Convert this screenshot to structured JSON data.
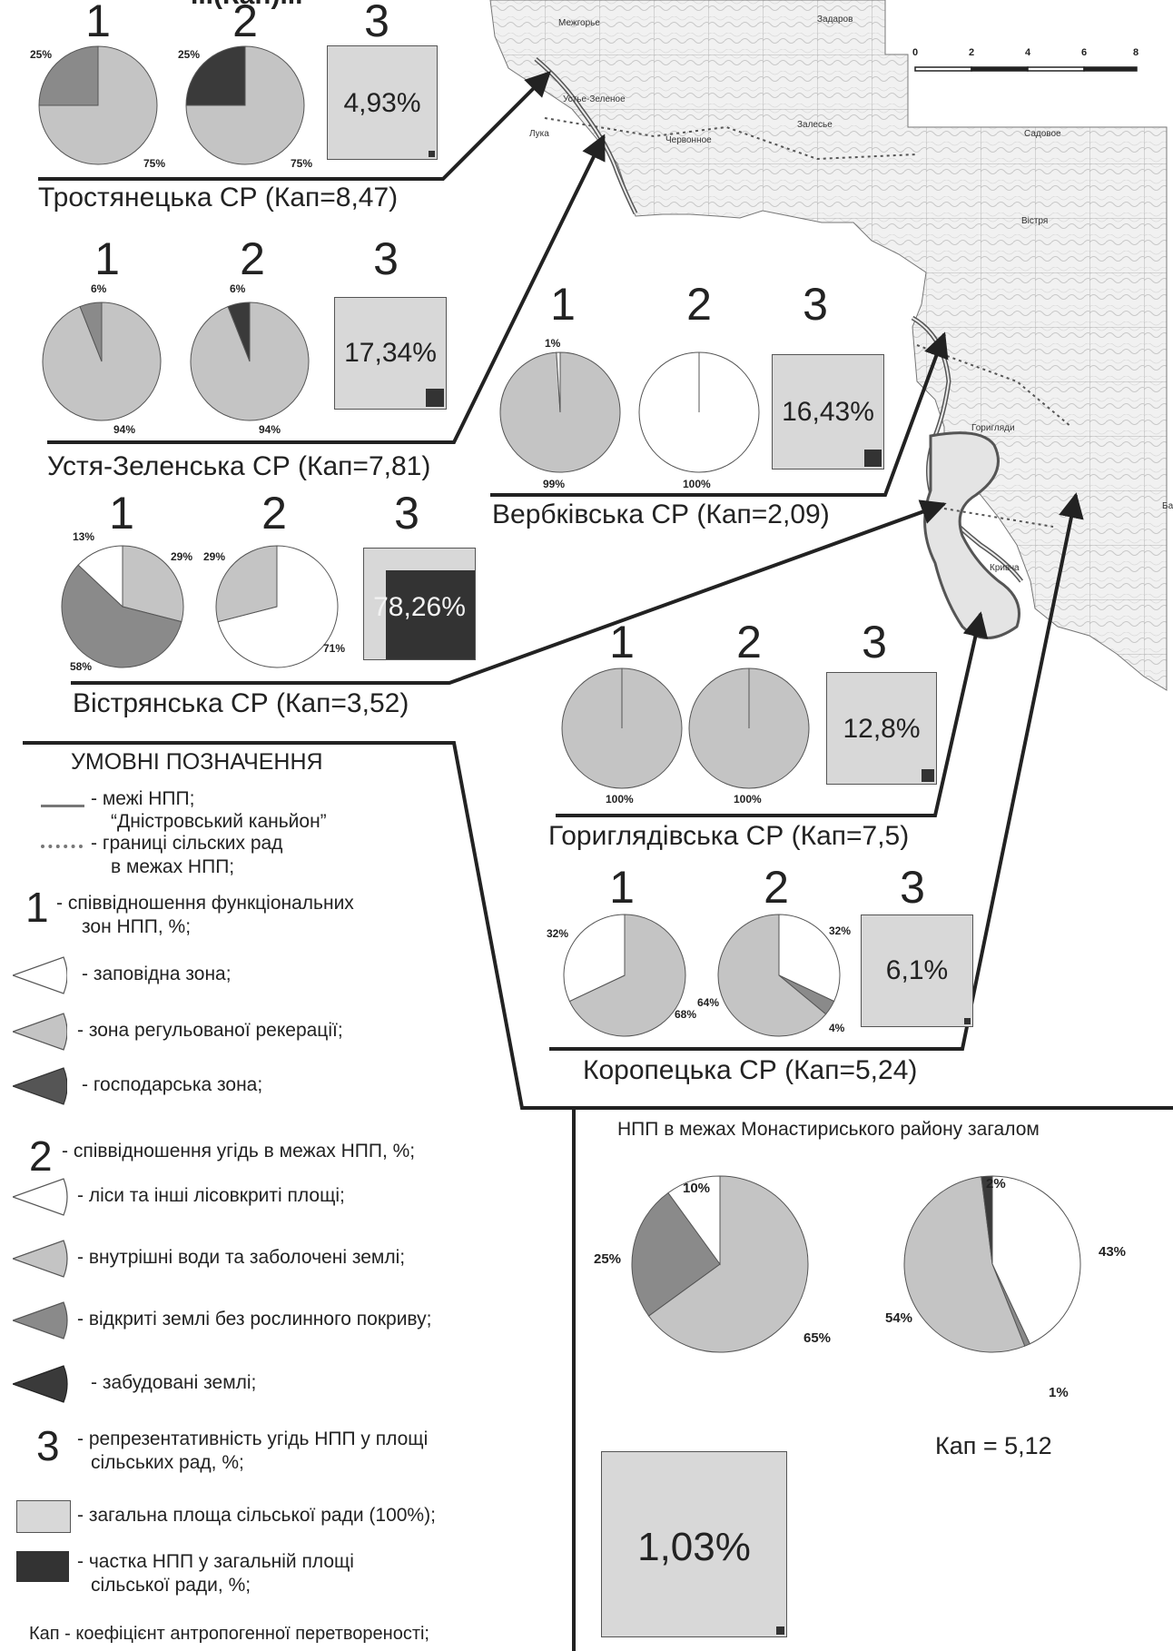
{
  "header": {
    "title_fragment": "...(Кап)..."
  },
  "scale_bar": {
    "ticks": [
      "0",
      "2",
      "4",
      "6",
      "8"
    ]
  },
  "map_labels": [
    "Межгорье",
    "Устье-Зеленое",
    "Лука",
    "Червонное",
    "Залесье",
    "Садовое",
    "Вістря",
    "Горигляди",
    "Кривча",
    "Бардовка",
    "Задаров"
  ],
  "councils": [
    {
      "name": "Тростянецька СР (Кап=8,47)",
      "zones": [
        {
          "label": "25%",
          "share": 25
        },
        {
          "label": "75%",
          "share": 75
        }
      ],
      "lands": [
        {
          "label": "25%",
          "share": 25
        },
        {
          "label": "75%",
          "share": 75
        }
      ],
      "representativeness": "4,93%"
    },
    {
      "name": "Устя-Зеленська СР (Кап=7,81)",
      "zones": [
        {
          "label": "6%",
          "share": 6
        },
        {
          "label": "94%",
          "share": 94
        }
      ],
      "lands": [
        {
          "label": "6%",
          "share": 6
        },
        {
          "label": "94%",
          "share": 94
        }
      ],
      "representativeness": "17,34%"
    },
    {
      "name": "Вербківська СР (Кап=2,09)",
      "zones": [
        {
          "label": "1%",
          "share": 1
        },
        {
          "label": "99%",
          "share": 99
        }
      ],
      "lands": [
        {
          "label": "100%",
          "share": 100
        }
      ],
      "representativeness": "16,43%"
    },
    {
      "name": "Вістрянська СР (Кап=3,52)",
      "zones": [
        {
          "label": "13%",
          "share": 13
        },
        {
          "label": "29%",
          "share": 29
        },
        {
          "label": "58%",
          "share": 58
        }
      ],
      "lands": [
        {
          "label": "29%",
          "share": 29
        },
        {
          "label": "71%",
          "share": 71
        }
      ],
      "representativeness": "78,26%"
    },
    {
      "name": "Гориглядівська СР (Кап=7,5)",
      "zones": [
        {
          "label": "100%",
          "share": 100
        }
      ],
      "lands": [
        {
          "label": "100%",
          "share": 100
        }
      ],
      "representativeness": "12,8%"
    },
    {
      "name": "Коропецька СР (Кап=5,24)",
      "zones": [
        {
          "label": "32%",
          "share": 32
        },
        {
          "label": "68%",
          "share": 68
        }
      ],
      "lands": [
        {
          "label": "32%",
          "share": 32
        },
        {
          "label": "64%",
          "share": 64
        },
        {
          "label": "4%",
          "share": 4
        }
      ],
      "representativeness": "6,1%"
    }
  ],
  "chart_numbers": {
    "one": "1",
    "two": "2",
    "three": "3"
  },
  "legend": {
    "title": "УМОВНІ ПОЗНАЧЕННЯ",
    "npp_boundary_1": "- межі НПП;",
    "npp_boundary_2": "“Дністровський каньйон”",
    "council_boundary_1": "- границі сільских рад",
    "council_boundary_2": "в межах НПП;",
    "n1_text_1": "- співвідношення функціональних",
    "n1_text_2": "зон НПП, %;",
    "zone_reserve": "- заповідна зона;",
    "zone_recreation": "- зона регульованої рекерації;",
    "zone_economic": "- господарська зона;",
    "n2_text": "- співвідношення угідь в межах НПП, %;",
    "land_forest": "- ліси та інші лісовкриті площі;",
    "land_water": "- внутрішні води та заболочені землі;",
    "land_open": "- відкриті землі без рослинного покриву;",
    "land_built": "- забудовані землі;",
    "n3_text_1": "- репрезентативність угідь НПП у площі",
    "n3_text_2": "сільських рад, %;",
    "total_area": "- загальна площа сільської ради (100%);",
    "share_1": "- частка НПП у загальній площі",
    "share_2": "сільської ради, %;",
    "kap_def": "Кап - коефіцієнт антропогенної перетвореності;"
  },
  "summary": {
    "title": "НПП в межах Монастириського району загалом",
    "zones": [
      {
        "label": "10%",
        "share": 10
      },
      {
        "label": "25%",
        "share": 25
      },
      {
        "label": "65%",
        "share": 65
      }
    ],
    "lands": [
      {
        "label": "2%",
        "share": 2
      },
      {
        "label": "43%",
        "share": 43
      },
      {
        "label": "1%",
        "share": 1
      },
      {
        "label": "54%",
        "share": 54
      }
    ],
    "kap": "Кап = 5,12",
    "representativeness": "1,03%"
  },
  "colors": {
    "reserve": "#ffffff",
    "recreation": "#c4c4c4",
    "economic": "#3a3a3a",
    "open_land": "#8a8a8a",
    "box_fill": "#d8d8d8"
  }
}
